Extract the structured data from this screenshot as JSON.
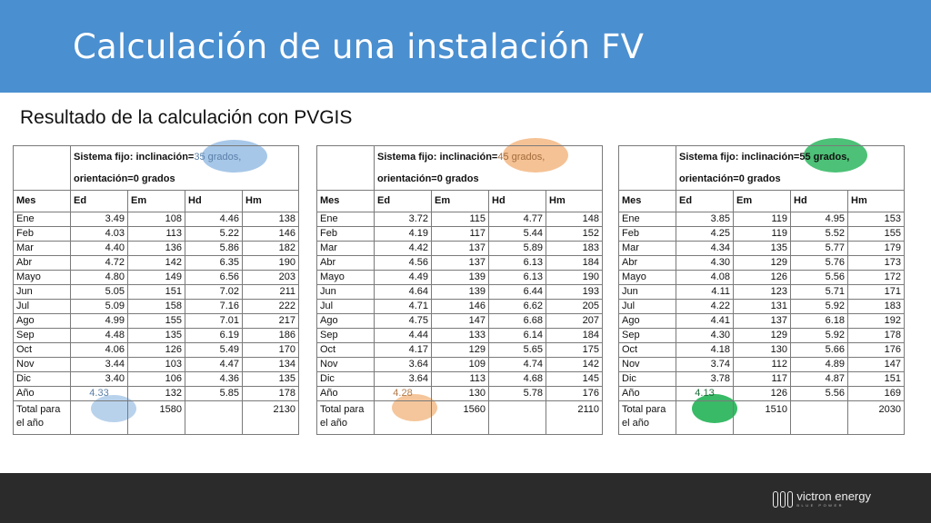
{
  "title": "Calculación de una instalación FV",
  "subtitle": "Resultado de la calculación con PVGIS",
  "colors": {
    "header": "#4a8fd0",
    "footer": "#2b2b2b",
    "highlight_blue": "#8ab4e0",
    "highlight_orange": "#f2b37a",
    "highlight_green": "#2eb65f"
  },
  "headers": [
    "Mes",
    "Ed",
    "Em",
    "Hd",
    "Hm"
  ],
  "months": [
    "Ene",
    "Feb",
    "Mar",
    "Abr",
    "Mayo",
    "Jun",
    "Jul",
    "Ago",
    "Sep",
    "Oct",
    "Nov",
    "Dic",
    "Año"
  ],
  "total_label": [
    "Total para",
    "el año"
  ],
  "footer": {
    "logo_text": "victron energy",
    "logo_tag": "BLUE POWER"
  },
  "tables": [
    {
      "system_prefix": "Sistema fijo: inclinación=",
      "system_value": "35 grados,",
      "orientation": "orientación=0 grados",
      "rows": [
        [
          "3.49",
          "108",
          "4.46",
          "138"
        ],
        [
          "4.03",
          "113",
          "5.22",
          "146"
        ],
        [
          "4.40",
          "136",
          "5.86",
          "182"
        ],
        [
          "4.72",
          "142",
          "6.35",
          "190"
        ],
        [
          "4.80",
          "149",
          "6.56",
          "203"
        ],
        [
          "5.05",
          "151",
          "7.02",
          "211"
        ],
        [
          "5.09",
          "158",
          "7.16",
          "222"
        ],
        [
          "4.99",
          "155",
          "7.01",
          "217"
        ],
        [
          "4.48",
          "135",
          "6.19",
          "186"
        ],
        [
          "4.06",
          "126",
          "5.49",
          "170"
        ],
        [
          "3.44",
          "103",
          "4.47",
          "134"
        ],
        [
          "3.40",
          "106",
          "4.36",
          "135"
        ],
        [
          "4.33",
          "132",
          "5.85",
          "178"
        ]
      ],
      "totals": [
        "",
        "1580",
        "",
        "2130"
      ]
    },
    {
      "system_prefix": "Sistema fijo: inclinación=",
      "system_value": "45 grados,",
      "orientation": "orientación=0 grados",
      "rows": [
        [
          "3.72",
          "115",
          "4.77",
          "148"
        ],
        [
          "4.19",
          "117",
          "5.44",
          "152"
        ],
        [
          "4.42",
          "137",
          "5.89",
          "183"
        ],
        [
          "4.56",
          "137",
          "6.13",
          "184"
        ],
        [
          "4.49",
          "139",
          "6.13",
          "190"
        ],
        [
          "4.64",
          "139",
          "6.44",
          "193"
        ],
        [
          "4.71",
          "146",
          "6.62",
          "205"
        ],
        [
          "4.75",
          "147",
          "6.68",
          "207"
        ],
        [
          "4.44",
          "133",
          "6.14",
          "184"
        ],
        [
          "4.17",
          "129",
          "5.65",
          "175"
        ],
        [
          "3.64",
          "109",
          "4.74",
          "142"
        ],
        [
          "3.64",
          "113",
          "4.68",
          "145"
        ],
        [
          "4.28",
          "130",
          "5.78",
          "176"
        ]
      ],
      "totals": [
        "",
        "1560",
        "",
        "2110"
      ]
    },
    {
      "system_prefix": "Sistema fijo: inclinación=",
      "system_value": "55 grados,",
      "orientation": "orientación=0 grados",
      "rows": [
        [
          "3.85",
          "119",
          "4.95",
          "153"
        ],
        [
          "4.25",
          "119",
          "5.52",
          "155"
        ],
        [
          "4.34",
          "135",
          "5.77",
          "179"
        ],
        [
          "4.30",
          "129",
          "5.76",
          "173"
        ],
        [
          "4.08",
          "126",
          "5.56",
          "172"
        ],
        [
          "4.11",
          "123",
          "5.71",
          "171"
        ],
        [
          "4.22",
          "131",
          "5.92",
          "183"
        ],
        [
          "4.41",
          "137",
          "6.18",
          "192"
        ],
        [
          "4.30",
          "129",
          "5.92",
          "178"
        ],
        [
          "4.18",
          "130",
          "5.66",
          "176"
        ],
        [
          "3.74",
          "112",
          "4.89",
          "147"
        ],
        [
          "3.78",
          "117",
          "4.87",
          "151"
        ],
        [
          "4.13",
          "126",
          "5.56",
          "169"
        ]
      ],
      "totals": [
        "",
        "1510",
        "",
        "2030"
      ]
    }
  ]
}
